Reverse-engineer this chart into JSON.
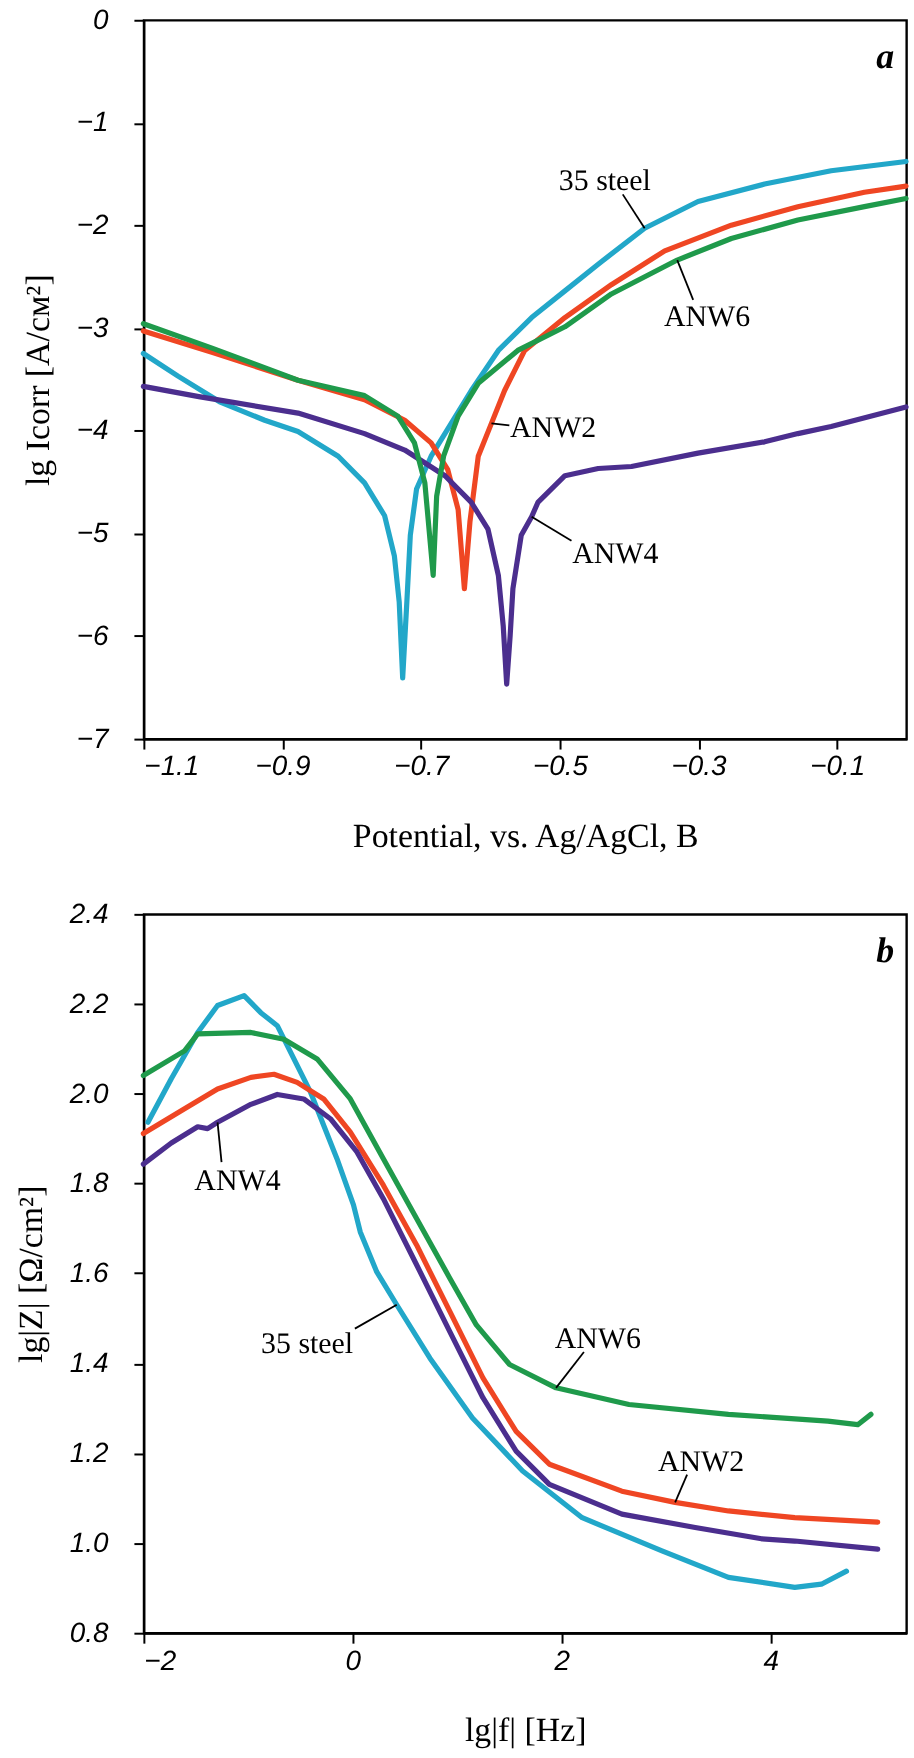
{
  "chart_data": [
    {
      "type": "line",
      "xlabel": "Potential, vs. Ag/AgCl, В",
      "ylabel": "lg Icorr [A/см²]",
      "annotations": [
        "a"
      ],
      "xlim": [
        -1.1,
        0.0
      ],
      "xticks": [
        -1.1,
        -0.9,
        -0.7,
        -0.5,
        -0.3,
        -0.1
      ],
      "ylim": [
        -7,
        0
      ],
      "yticks": [
        -7,
        -6,
        -5,
        -4,
        -3,
        -2,
        -1,
        0
      ],
      "grid": false,
      "legend": false,
      "line_style": "solid",
      "series": [
        {
          "name": "35 steel",
          "color": "#22a7c9",
          "x": [
            -1.1,
            -1.05,
            -0.99,
            -0.925,
            -0.877,
            -0.819,
            -0.781,
            -0.752,
            -0.738,
            -0.731,
            -0.726,
            -0.72,
            -0.715,
            -0.706,
            -0.685,
            -0.656,
            -0.627,
            -0.588,
            -0.54,
            -0.492,
            -0.444,
            -0.377,
            -0.3,
            -0.204,
            -0.108,
            0.0
          ],
          "values": [
            -3.25,
            -3.47,
            -3.72,
            -3.9,
            -4.01,
            -4.25,
            -4.51,
            -4.83,
            -5.22,
            -5.67,
            -6.41,
            -5.67,
            -5.02,
            -4.57,
            -4.25,
            -3.93,
            -3.61,
            -3.22,
            -2.9,
            -2.64,
            -2.38,
            -2.03,
            -1.77,
            -1.6,
            -1.47,
            -1.38
          ]
        },
        {
          "name": "ANW2",
          "color": "#ef4623",
          "x": [
            -1.1,
            -1.0,
            -0.877,
            -0.781,
            -0.723,
            -0.685,
            -0.661,
            -0.646,
            -0.637,
            -0.629,
            -0.617,
            -0.598,
            -0.579,
            -0.55,
            -0.492,
            -0.425,
            -0.348,
            -0.252,
            -0.156,
            -0.06,
            0.0
          ],
          "values": [
            -3.03,
            -3.24,
            -3.51,
            -3.7,
            -3.9,
            -4.12,
            -4.38,
            -4.77,
            -5.54,
            -4.89,
            -4.25,
            -3.93,
            -3.61,
            -3.22,
            -2.9,
            -2.58,
            -2.25,
            -2.0,
            -1.82,
            -1.68,
            -1.62
          ]
        },
        {
          "name": "ANW4",
          "color": "#4b2e8e",
          "x": [
            -1.1,
            -1.02,
            -0.877,
            -0.781,
            -0.723,
            -0.665,
            -0.627,
            -0.603,
            -0.588,
            -0.581,
            -0.576,
            -0.571,
            -0.567,
            -0.555,
            -0.54,
            -0.531,
            -0.492,
            -0.444,
            -0.396,
            -0.3,
            -0.204,
            -0.156,
            -0.108,
            0.0
          ],
          "values": [
            -3.57,
            -3.67,
            -3.83,
            -4.03,
            -4.19,
            -4.44,
            -4.7,
            -4.96,
            -5.41,
            -5.9,
            -6.47,
            -6.0,
            -5.54,
            -5.02,
            -4.84,
            -4.7,
            -4.44,
            -4.37,
            -4.35,
            -4.22,
            -4.11,
            -4.03,
            -3.96,
            -3.77
          ]
        },
        {
          "name": "ANW6",
          "color": "#1f9a4b",
          "x": [
            -1.1,
            -1.0,
            -0.877,
            -0.781,
            -0.733,
            -0.709,
            -0.694,
            -0.682,
            -0.677,
            -0.667,
            -0.646,
            -0.617,
            -0.56,
            -0.492,
            -0.425,
            -0.33,
            -0.252,
            -0.156,
            -0.06,
            0.0
          ],
          "values": [
            -2.96,
            -3.2,
            -3.51,
            -3.66,
            -3.86,
            -4.12,
            -4.51,
            -5.41,
            -4.64,
            -4.25,
            -3.86,
            -3.54,
            -3.22,
            -2.99,
            -2.67,
            -2.34,
            -2.13,
            -1.95,
            -1.82,
            -1.74
          ]
        }
      ]
    },
    {
      "type": "line",
      "xlabel": "lg|f| [Hz]",
      "ylabel": "lg|Z| [Ω/cm²]",
      "annotations": [
        "b"
      ],
      "xlim": [
        -2,
        5.3
      ],
      "xticks": [
        -2,
        0,
        2,
        4
      ],
      "ylim": [
        0.8,
        2.4
      ],
      "yticks": [
        0.8,
        {
          "value": 1,
          "label": "1.0"
        },
        1.2,
        1.4,
        1.6,
        1.8,
        {
          "value": 2,
          "label": "2.0"
        },
        2.2,
        2.4
      ],
      "grid": false,
      "legend": false,
      "line_style": "solid",
      "series": [
        {
          "name": "35 steel",
          "color": "#22a7c9",
          "x": [
            -1.956,
            -1.733,
            -1.48,
            -1.29,
            -1.036,
            -0.876,
            -0.718,
            -0.4,
            -0.147,
            0.011,
            0.076,
            0.234,
            0.425,
            0.743,
            1.15,
            1.63,
            2.2,
            2.964,
            3.6,
            4.235,
            4.49,
            4.73
          ],
          "values": [
            1.936,
            2.033,
            2.136,
            2.196,
            2.218,
            2.18,
            2.151,
            2.003,
            1.855,
            1.752,
            1.692,
            1.603,
            1.53,
            1.411,
            1.278,
            1.16,
            1.056,
            0.982,
            0.923,
            0.901,
            0.908,
            0.937
          ]
        },
        {
          "name": "ANW2",
          "color": "#ef4623",
          "x": [
            -2.0,
            -1.606,
            -1.29,
            -0.971,
            -0.75,
            -0.528,
            -0.274,
            -0.019,
            0.297,
            0.615,
            0.933,
            1.25,
            1.568,
            1.886,
            2.58,
            3.09,
            3.6,
            4.235,
            5.029
          ],
          "values": [
            1.911,
            1.966,
            2.01,
            2.036,
            2.043,
            2.025,
            1.988,
            1.914,
            1.796,
            1.663,
            1.515,
            1.367,
            1.248,
            1.175,
            1.115,
            1.09,
            1.071,
            1.056,
            1.046
          ]
        },
        {
          "name": "ANW4",
          "color": "#4b2e8e",
          "x": [
            -2.0,
            -1.733,
            -1.48,
            -1.385,
            -1.29,
            -0.971,
            -0.718,
            -0.465,
            -0.21,
            0.044,
            0.297,
            0.615,
            0.933,
            1.25,
            1.568,
            1.886,
            2.58,
            3.282,
            3.917,
            4.235,
            5.029
          ],
          "values": [
            1.843,
            1.89,
            1.926,
            1.922,
            1.936,
            1.976,
            1.998,
            1.988,
            1.944,
            1.87,
            1.766,
            1.619,
            1.47,
            1.323,
            1.204,
            1.13,
            1.064,
            1.034,
            1.009,
            1.004,
            0.986
          ]
        },
        {
          "name": "ANW6",
          "color": "#1f9a4b",
          "x": [
            -2.0,
            -1.606,
            -1.48,
            -0.971,
            -0.655,
            -0.337,
            -0.019,
            0.297,
            0.615,
            0.933,
            1.187,
            1.505,
            1.95,
            2.648,
            3.6,
            4.552,
            4.838,
            4.964
          ],
          "values": [
            2.04,
            2.095,
            2.133,
            2.136,
            2.121,
            2.077,
            1.988,
            1.855,
            1.722,
            1.589,
            1.485,
            1.397,
            1.345,
            1.308,
            1.286,
            1.271,
            1.263,
            1.286
          ]
        }
      ]
    }
  ]
}
